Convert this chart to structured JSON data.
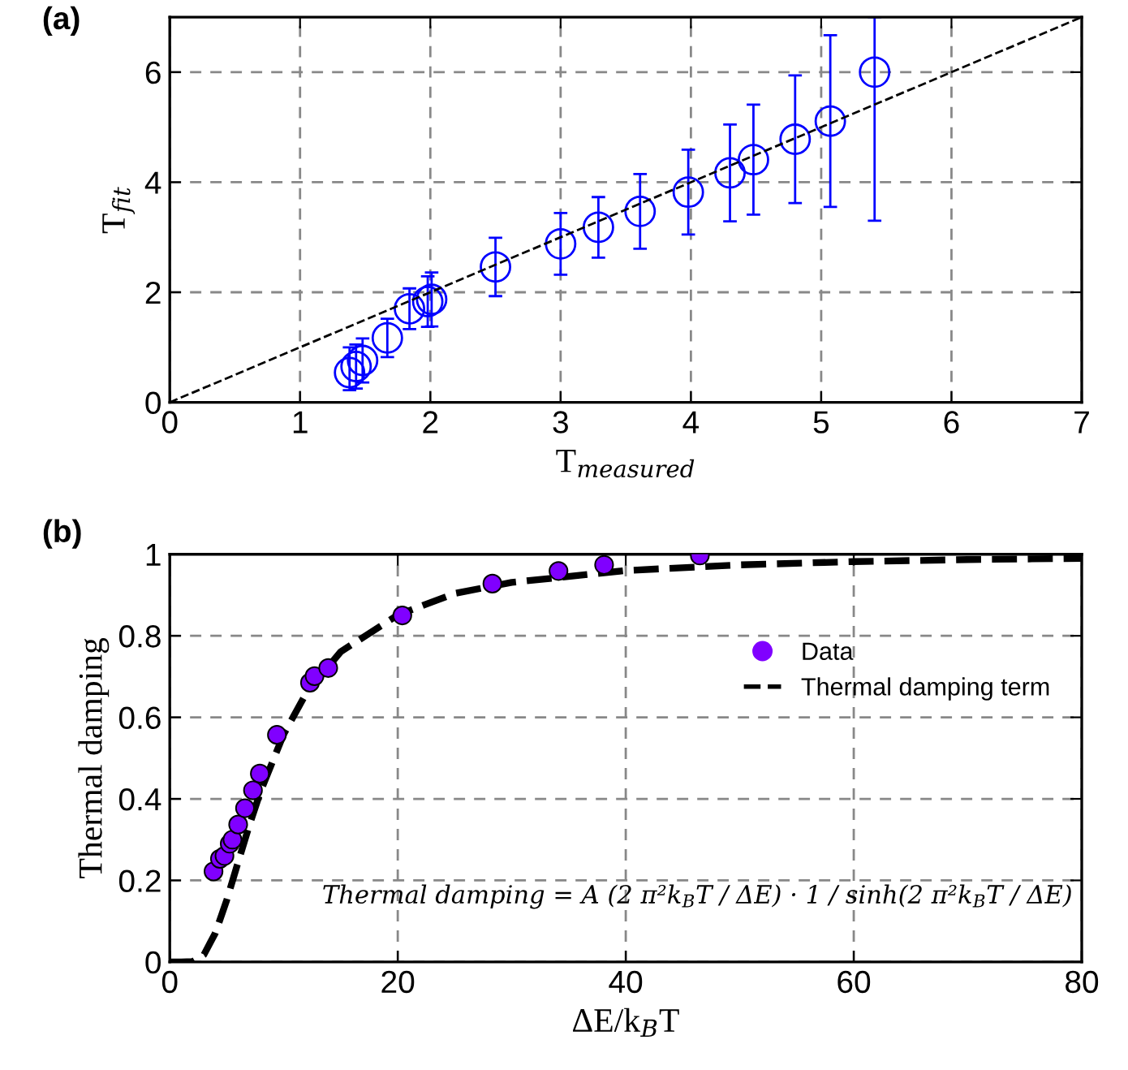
{
  "chart_data": [
    {
      "type": "scatter",
      "title": "(a)",
      "xlabel": "T$_{measured}$",
      "ylabel": "T$_{fit}$",
      "xlim": [
        0,
        7
      ],
      "ylim": [
        0,
        7
      ],
      "xticks": [
        0,
        1,
        2,
        3,
        4,
        5,
        6,
        7
      ],
      "yticks": [
        0,
        2,
        4,
        6
      ],
      "grid": true,
      "legend": false,
      "series": [
        {
          "color": "#0000ff",
          "marker": "circle",
          "x": [
            1.38,
            1.43,
            1.48,
            1.67,
            1.84,
            1.98,
            2.01,
            2.5,
            3.0,
            3.29,
            3.61,
            3.98,
            4.3,
            4.48,
            4.8,
            5.07,
            5.41
          ],
          "values": [
            0.54,
            0.65,
            0.76,
            1.17,
            1.7,
            1.83,
            1.87,
            2.46,
            2.88,
            3.18,
            3.47,
            3.82,
            4.17,
            4.41,
            4.78,
            5.11,
            6.0
          ],
          "errors": [
            [
              0.22,
              1.0
            ],
            0.4,
            0.4,
            0.35,
            0.37,
            0.46,
            0.49,
            0.53,
            0.56,
            0.55,
            0.68,
            0.77,
            0.88,
            1.0,
            1.16,
            1.56,
            [
              3.3,
              7.0
            ]
          ]
        },
        {
          "type": "line",
          "color": "#000000",
          "line_style": "dashed",
          "marker": "none",
          "x": [
            0,
            7
          ],
          "values": [
            0,
            7
          ]
        }
      ]
    },
    {
      "type": "scatter",
      "title": "(b)",
      "xlabel": "ΔE/k$_{B}$T",
      "ylabel": "Thermal damping",
      "xlim": [
        0,
        80
      ],
      "ylim": [
        0,
        1
      ],
      "xticks": [
        0,
        20,
        40,
        60,
        80
      ],
      "yticks": [
        0,
        0.2,
        0.4,
        0.6,
        0.8,
        1
      ],
      "grid": true,
      "legend": "top right",
      "annotations": [
        "Thermal damping = A (2 π²k$_{B}$T / ΔE) · 1 / sinh(2 π²k$_{B}$T / ΔE)"
      ],
      "series": [
        {
          "name": "Data",
          "color": "#8000ff",
          "marker": "circle",
          "x": [
            3.84,
            4.4,
            4.8,
            5.26,
            5.5,
            6.0,
            6.6,
            7.3,
            7.9,
            9.4,
            12.3,
            12.7,
            13.9,
            20.4,
            28.3,
            34.1,
            38.1,
            46.5
          ],
          "values": [
            0.222,
            0.253,
            0.26,
            0.29,
            0.3,
            0.337,
            0.377,
            0.421,
            0.462,
            0.557,
            0.685,
            0.701,
            0.721,
            0.85,
            0.928,
            0.959,
            0.974,
            0.997
          ]
        },
        {
          "type": "line",
          "name": "Thermal damping term",
          "color": "#000000",
          "line_style": "dashed",
          "marker": "none",
          "x": [
            0,
            1,
            2,
            3,
            4,
            5,
            6,
            7,
            8,
            10,
            12,
            15,
            20,
            25,
            30,
            40,
            50,
            60,
            70,
            80
          ],
          "values": [
            0,
            0,
            0.001,
            0.018,
            0.071,
            0.152,
            0.245,
            0.337,
            0.421,
            0.559,
            0.661,
            0.761,
            0.851,
            0.904,
            0.931,
            0.96,
            0.974,
            0.982,
            0.987,
            0.99
          ]
        }
      ]
    }
  ]
}
